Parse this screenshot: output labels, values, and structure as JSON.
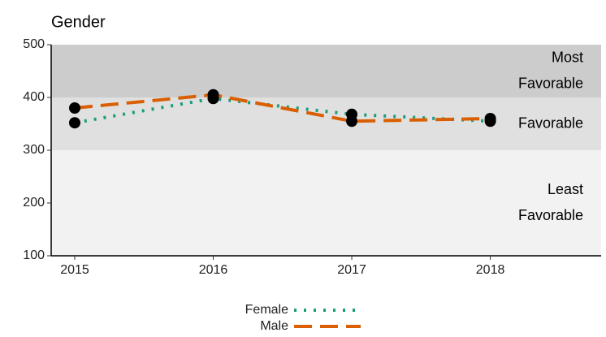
{
  "chart_data": {
    "type": "line",
    "title": "Gender",
    "x": [
      2015,
      2016,
      2017,
      2018
    ],
    "series": [
      {
        "name": "Female",
        "color": "#1b9e77",
        "dash": "dotted",
        "values": [
          352,
          398,
          368,
          355
        ]
      },
      {
        "name": "Male",
        "color": "#d95f02",
        "dash": "dashed",
        "values": [
          380,
          405,
          355,
          360
        ]
      }
    ],
    "bands": [
      {
        "label_lines": [
          "Most",
          "Favorable"
        ],
        "from": 400,
        "to": 500,
        "color": "#cccccc"
      },
      {
        "label_lines": [
          "Favorable"
        ],
        "from": 300,
        "to": 400,
        "color": "#e0e0e0"
      },
      {
        "label_lines": [
          "Least",
          "Favorable"
        ],
        "from": 100,
        "to": 300,
        "color": "#f2f2f2"
      }
    ],
    "xlim": [
      2014.83,
      2018.8
    ],
    "xticks": [
      2015,
      2016,
      2017,
      2018
    ],
    "ylim": [
      100,
      500
    ],
    "yticks": [
      100,
      200,
      300,
      400,
      500
    ],
    "point_color": "#000000",
    "legend": "bottom"
  }
}
